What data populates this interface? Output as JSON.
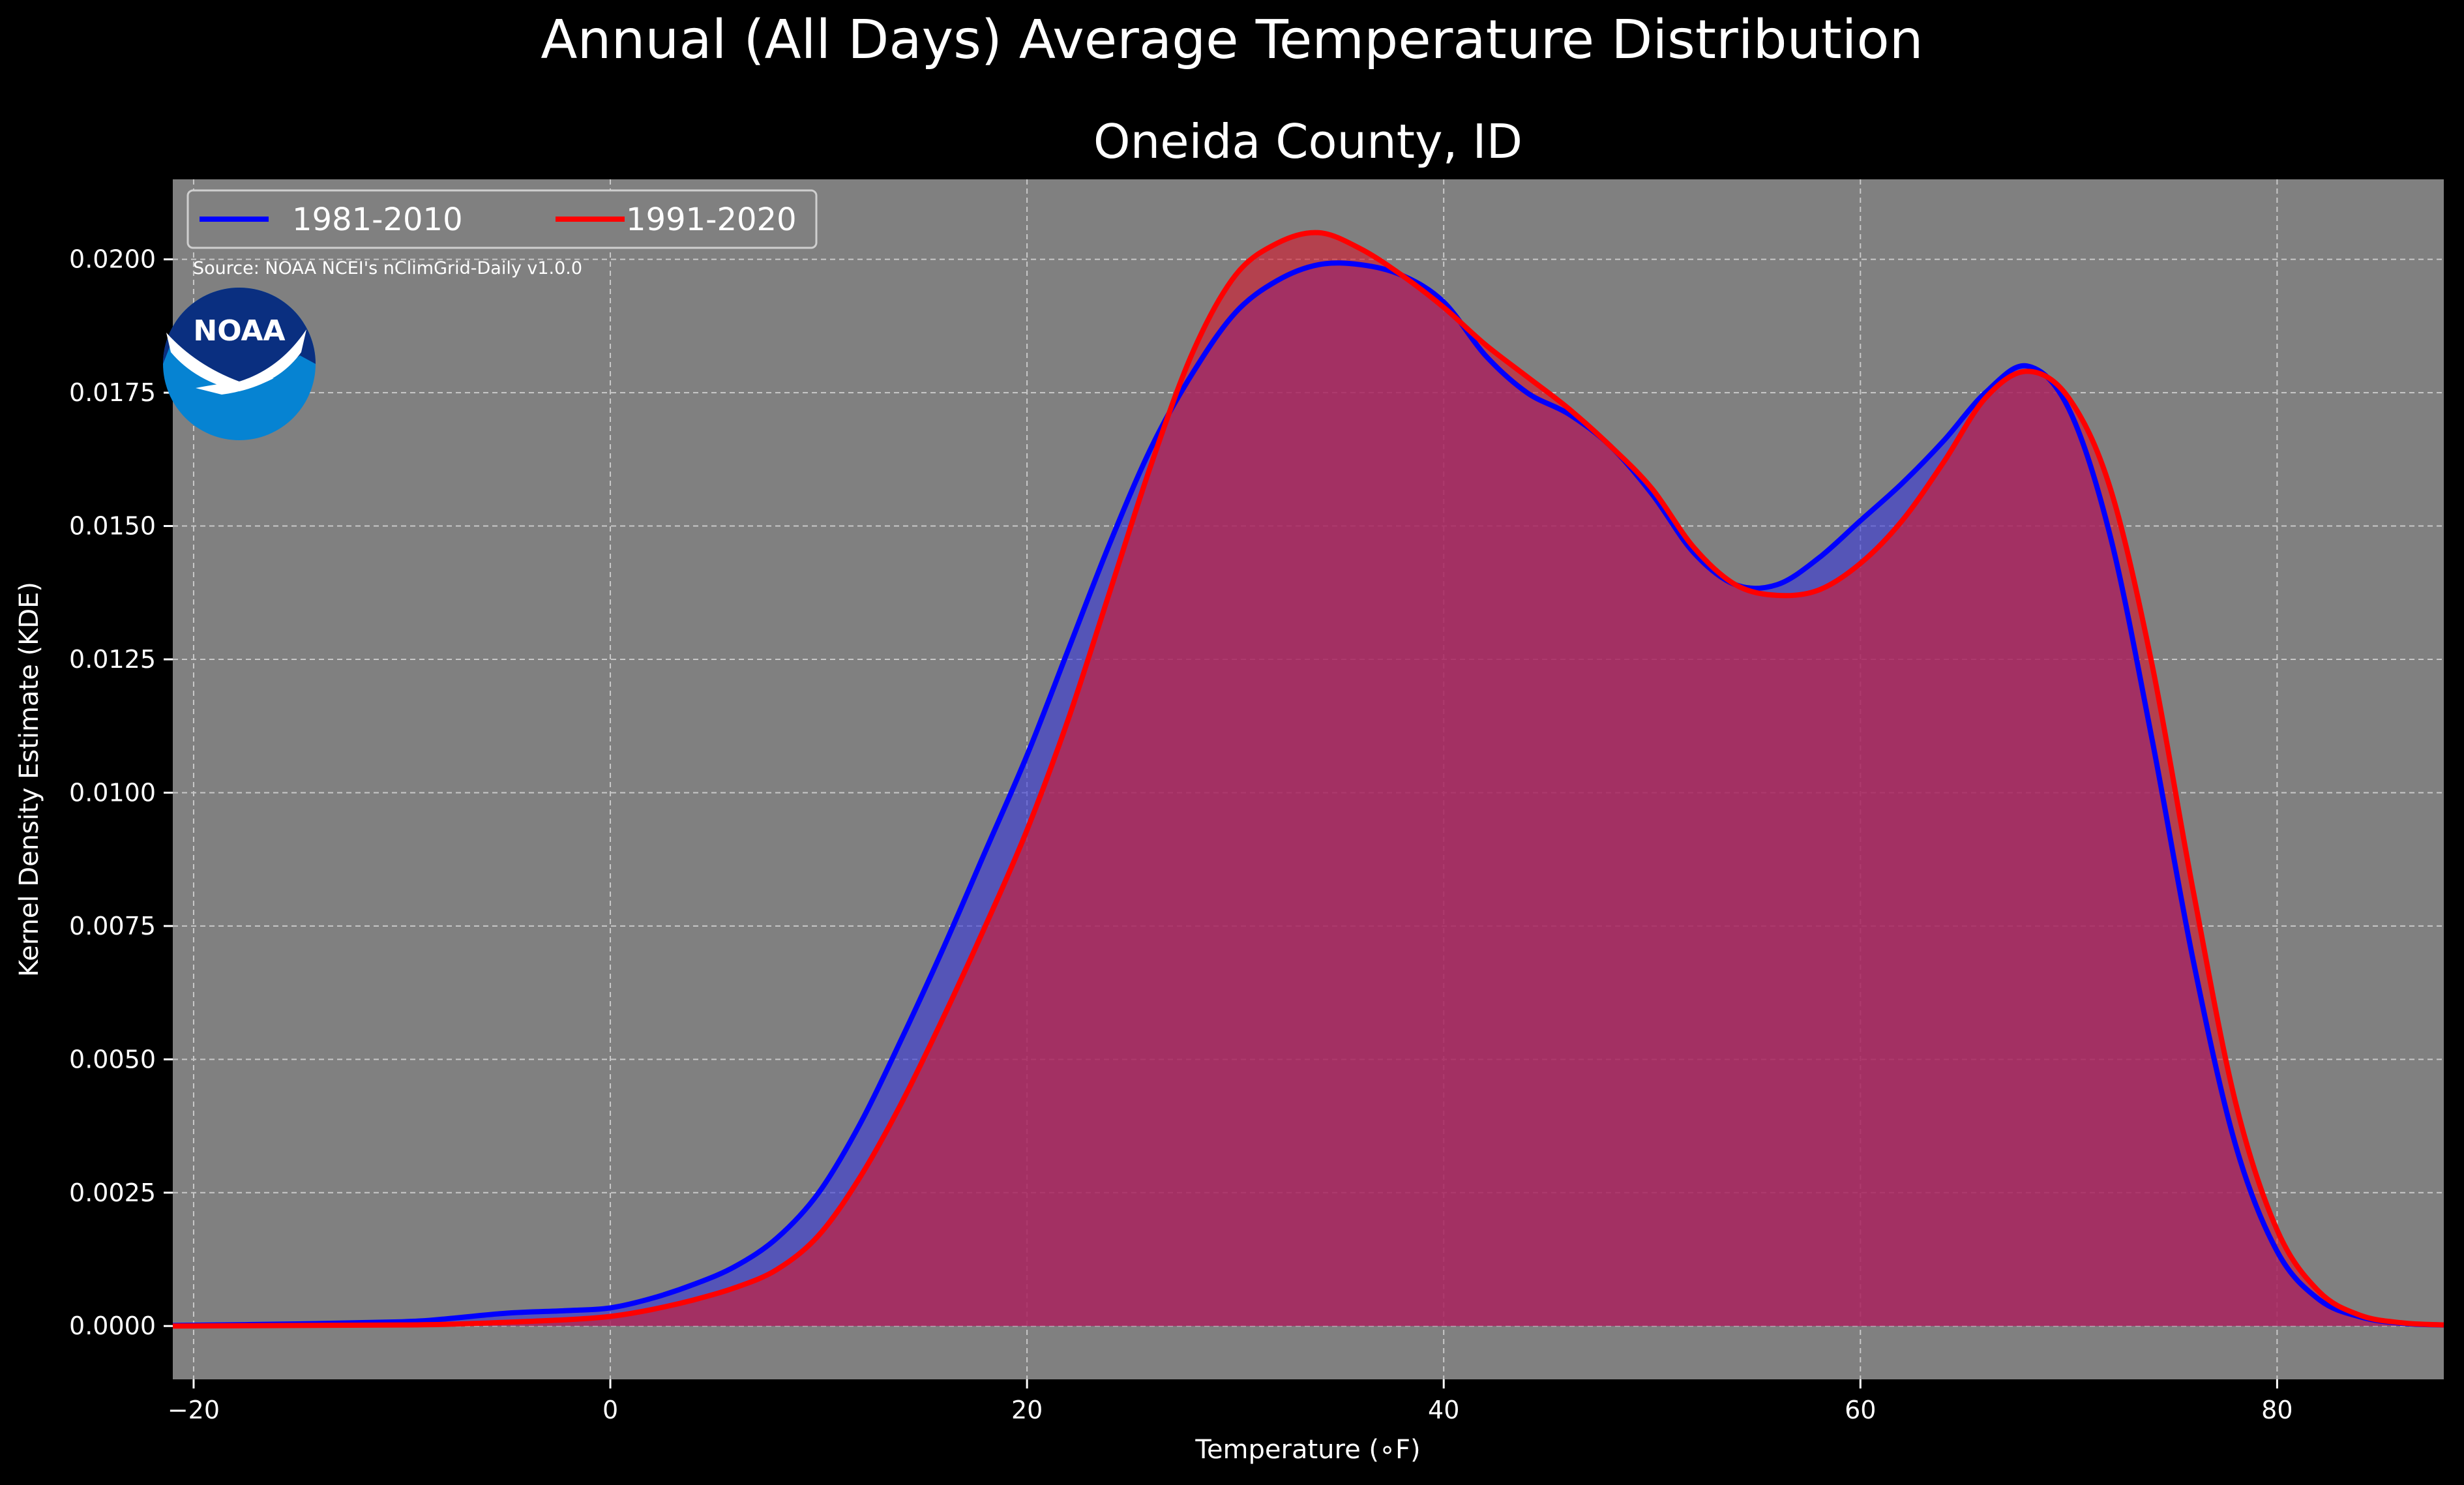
{
  "chart_data": {
    "type": "area",
    "suptitle": "Annual (All Days) Average Temperature Distribution",
    "title": "Oneida County, ID",
    "xlabel": "Temperature ($^\\circ$F)",
    "xlabel_display": "Temperature (∘F)",
    "ylabel": "Kernel Density Estimate (KDE)",
    "xlim": [
      -21,
      88
    ],
    "ylim": [
      -0.001,
      0.0215
    ],
    "xticks": [
      -20,
      0,
      20,
      40,
      60,
      80
    ],
    "xtick_labels": [
      "−20",
      "0",
      "20",
      "40",
      "60",
      "80"
    ],
    "yticks": [
      0,
      0.0025,
      0.005,
      0.0075,
      0.01,
      0.0125,
      0.015,
      0.0175,
      0.02
    ],
    "ytick_labels": [
      "0.0000",
      "0.0025",
      "0.0050",
      "0.0075",
      "0.0100",
      "0.0125",
      "0.0150",
      "0.0175",
      "0.0200"
    ],
    "grid": true,
    "legend_position": "top-left",
    "source": "Source: NOAA NCEI's nClimGrid-Daily v1.0.0",
    "logo_text": "NOAA",
    "x": [
      -21,
      -15,
      -10,
      -8,
      -5,
      -2,
      0,
      2,
      4,
      6,
      8,
      10,
      12,
      14,
      16,
      18,
      20,
      22,
      24,
      26,
      28,
      30,
      32,
      34,
      36,
      38,
      40,
      42,
      44,
      46,
      48,
      50,
      52,
      54,
      56,
      58,
      60,
      62,
      64,
      66,
      68,
      70,
      72,
      74,
      76,
      78,
      80,
      82,
      84,
      86,
      88
    ],
    "series": [
      {
        "name": "1981-2010",
        "color": "#0000ff",
        "fill": "#3a3ad8",
        "values": [
          1e-05,
          4e-05,
          8e-05,
          0.00013,
          0.00024,
          0.00029,
          0.00034,
          0.00052,
          0.00078,
          0.00112,
          0.00165,
          0.0025,
          0.0038,
          0.0054,
          0.0071,
          0.0089,
          0.0107,
          0.0127,
          0.0147,
          0.0165,
          0.0179,
          0.019,
          0.0196,
          0.0199,
          0.0199,
          0.0197,
          0.0192,
          0.0182,
          0.0175,
          0.0171,
          0.0165,
          0.0156,
          0.0145,
          0.0139,
          0.0139,
          0.0144,
          0.0151,
          0.0158,
          0.0166,
          0.0175,
          0.018,
          0.0172,
          0.0148,
          0.011,
          0.0068,
          0.0034,
          0.0014,
          0.0005,
          0.00017,
          5e-05,
          2e-05
        ]
      },
      {
        "name": "1991-2020",
        "color": "#ff0000",
        "fill": "#d41a2e",
        "values": [
          0.0,
          1e-05,
          2e-05,
          3e-05,
          7e-05,
          0.00012,
          0.00018,
          0.00031,
          0.00049,
          0.00072,
          0.00106,
          0.0017,
          0.0028,
          0.0042,
          0.0058,
          0.0075,
          0.0093,
          0.0114,
          0.0138,
          0.0162,
          0.0183,
          0.0197,
          0.0203,
          0.0205,
          0.0202,
          0.0197,
          0.0191,
          0.0184,
          0.0178,
          0.0172,
          0.0165,
          0.0157,
          0.0146,
          0.0139,
          0.0137,
          0.0138,
          0.0143,
          0.0151,
          0.0162,
          0.0174,
          0.0179,
          0.0174,
          0.0157,
          0.0124,
          0.0081,
          0.0042,
          0.0018,
          0.00065,
          0.0002,
          6e-05,
          2e-05
        ]
      }
    ]
  }
}
